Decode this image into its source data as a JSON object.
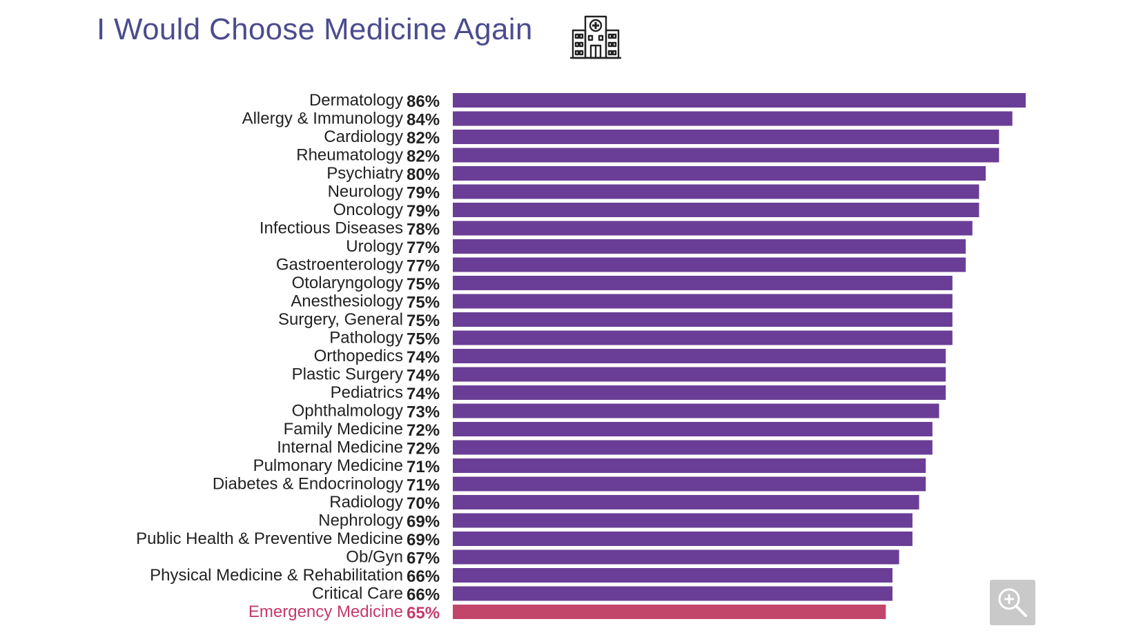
{
  "title": "I Would Choose Medicine Again",
  "icons": {
    "header": "hospital-icon",
    "zoom": "zoom-in-icon"
  },
  "colors": {
    "title": "#4b4c8e",
    "bar": "#6a3e96",
    "highlight_bar": "#c2466a",
    "highlight_text": "#c53a6b",
    "label": "#222222"
  },
  "chart_data": {
    "type": "bar",
    "orientation": "horizontal",
    "title": "I Would Choose Medicine Again",
    "unit": "%",
    "xlim": [
      0,
      86
    ],
    "grid": false,
    "highlight_category": "Emergency Medicine",
    "categories": [
      "Dermatology",
      "Allergy & Immunology",
      "Cardiology",
      "Rheumatology",
      "Psychiatry",
      "Neurology",
      "Oncology",
      "Infectious Diseases",
      "Urology",
      "Gastroenterology",
      "Otolaryngology",
      "Anesthesiology",
      "Surgery, General",
      "Pathology",
      "Orthopedics",
      "Plastic Surgery",
      "Pediatrics",
      "Ophthalmology",
      "Family Medicine",
      "Internal Medicine",
      "Pulmonary Medicine",
      "Diabetes & Endocrinology",
      "Radiology",
      "Nephrology",
      "Public Health & Preventive Medicine",
      "Ob/Gyn",
      "Physical Medicine & Rehabilitation",
      "Critical Care",
      "Emergency Medicine"
    ],
    "values": [
      86,
      84,
      82,
      82,
      80,
      79,
      79,
      78,
      77,
      77,
      75,
      75,
      75,
      75,
      74,
      74,
      74,
      73,
      72,
      72,
      71,
      71,
      70,
      69,
      69,
      67,
      66,
      66,
      65
    ],
    "value_labels": [
      "86%",
      "84%",
      "82%",
      "82%",
      "80%",
      "79%",
      "79%",
      "78%",
      "77%",
      "77%",
      "75%",
      "75%",
      "75%",
      "75%",
      "74%",
      "74%",
      "74%",
      "73%",
      "72%",
      "72%",
      "71%",
      "71%",
      "70%",
      "69%",
      "69%",
      "67%",
      "66%",
      "66%",
      "65%"
    ]
  }
}
